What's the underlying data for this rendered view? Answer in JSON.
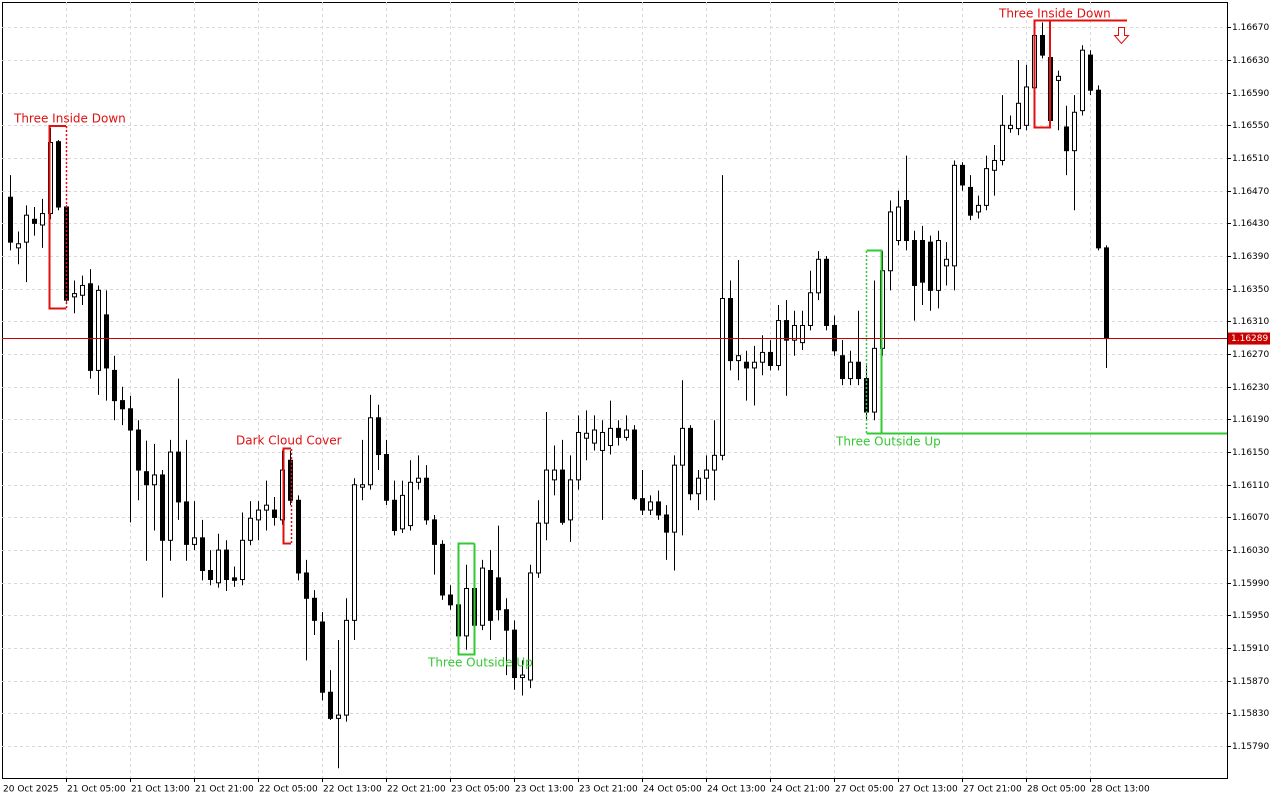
{
  "chart_data": {
    "type": "candlestick",
    "x": [
      "20 Oct 2025",
      null,
      null,
      null,
      null,
      null,
      null,
      "21 Oct 05:00",
      null,
      null,
      null,
      null,
      null,
      null,
      null,
      "21 Oct 13:00",
      null,
      null,
      null,
      null,
      null,
      null,
      null,
      "21 Oct 21:00",
      null,
      null,
      null,
      null,
      null,
      null,
      null,
      "22 Oct 05:00",
      null,
      null,
      null,
      null,
      null,
      null,
      null,
      "22 Oct 13:00",
      null,
      null,
      null,
      null,
      null,
      null,
      null,
      "22 Oct 21:00",
      null,
      null,
      null,
      null,
      null,
      null,
      null,
      "23 Oct 05:00",
      null,
      null,
      null,
      null,
      null,
      null,
      null,
      "23 Oct 13:00",
      null,
      null,
      null,
      null,
      null,
      null,
      null,
      "23 Oct 21:00",
      null,
      null,
      null,
      null,
      null,
      null,
      null,
      "24 Oct 05:00",
      null,
      null,
      null,
      null,
      null,
      null,
      null,
      "24 Oct 13:00",
      null,
      null,
      null,
      null,
      null,
      null,
      null,
      "24 Oct 21:00",
      null,
      null,
      null,
      null,
      null,
      null,
      null,
      "27 Oct 05:00",
      null,
      null,
      null,
      null,
      null,
      null,
      null,
      "27 Oct 13:00",
      null,
      null,
      null,
      null,
      null,
      null,
      null,
      "27 Oct 21:00",
      null,
      null,
      null,
      null,
      null,
      null,
      null,
      "28 Oct 05:00",
      null,
      null,
      null,
      null,
      null,
      null,
      null,
      "28 Oct 13:00",
      null,
      null
    ],
    "open": [
      1.16462,
      1.164,
      1.16407,
      1.16435,
      1.16428,
      1.16442,
      1.1653,
      1.1645,
      1.1634,
      1.16342,
      1.16356,
      1.1625,
      1.16318,
      1.1625,
      1.16213,
      1.16203,
      1.16177,
      1.16126,
      1.1611,
      1.16122,
      1.16042,
      1.1615,
      1.16089,
      1.16037,
      1.16045,
      1.16005,
      1.1599,
      1.1603,
      1.15996,
      1.15994,
      1.16042,
      1.16067,
      1.16079,
      1.16079,
      1.16067,
      1.1614,
      1.16091,
      1.16002,
      1.15971,
      1.15942,
      1.15856,
      1.15824,
      1.15828,
      1.15944,
      1.16107,
      1.1611,
      1.16192,
      1.16147,
      1.16091,
      1.16056,
      1.1606,
      1.16113,
      1.16118,
      1.16067,
      1.16037,
      1.15975,
      1.15963,
      1.15925,
      1.15983,
      1.15938,
      1.16005,
      1.15996,
      1.15957,
      1.15932,
      1.15874,
      1.15871,
      1.16002,
      1.16063,
      1.16116,
      1.16128,
      1.16067,
      1.16116,
      1.16167,
      1.16161,
      1.16152,
      1.16158,
      1.16179,
      1.16168,
      1.16177,
      1.16093,
      1.16079,
      1.16089,
      1.16073,
      1.16052,
      1.16134,
      1.16179,
      1.16099,
      1.16118,
      1.16128,
      1.16146,
      1.16338,
      1.16262,
      1.1626,
      1.16253,
      1.1626,
      1.16272,
      1.16256,
      1.16311,
      1.16287,
      1.16284,
      1.16305,
      1.16345,
      1.16386,
      1.16305,
      1.16268,
      1.1624,
      1.1626,
      1.1624,
      1.16199,
      1.16277,
      1.16372,
      1.16409,
      1.16458,
      1.16409,
      1.16409,
      1.16407,
      1.16348,
      1.16378,
      1.16378,
      1.16501,
      1.16474,
      1.16444,
      1.16452,
      1.16495,
      1.16507,
      1.16546,
      1.16546,
      1.1655,
      1.16596,
      1.1666,
      1.16633,
      1.16605,
      1.16548,
      1.16519,
      1.16568,
      1.16636,
      1.16593,
      1.164
    ],
    "high": [
      1.16489,
      1.1642,
      1.16452,
      1.1645,
      1.1646,
      1.16547,
      1.16532,
      1.16452,
      1.1636,
      1.16366,
      1.16374,
      1.16354,
      1.16348,
      1.16268,
      1.1623,
      1.16219,
      1.16189,
      1.16164,
      1.1616,
      1.16128,
      1.16165,
      1.1624,
      1.16165,
      1.1609,
      1.16067,
      1.1603,
      1.1605,
      1.16042,
      1.1601,
      1.16076,
      1.1609,
      1.1609,
      1.16115,
      1.16095,
      1.16152,
      1.16152,
      1.16097,
      1.16018,
      1.15981,
      1.15954,
      1.15883,
      1.1592,
      1.15971,
      1.16118,
      1.16165,
      1.1622,
      1.16208,
      1.16165,
      1.16115,
      1.16115,
      1.1614,
      1.16146,
      1.16134,
      1.16073,
      1.16042,
      1.15987,
      1.15969,
      1.16012,
      1.16005,
      1.16018,
      1.1603,
      1.1606,
      1.15971,
      1.15944,
      1.15895,
      1.16012,
      1.16091,
      1.16199,
      1.16158,
      1.16165,
      1.16146,
      1.16195,
      1.16201,
      1.16195,
      1.16189,
      1.16213,
      1.16189,
      1.16195,
      1.16183,
      1.16128,
      1.16097,
      1.16103,
      1.16085,
      1.16146,
      1.16238,
      1.16183,
      1.16128,
      1.16146,
      1.16189,
      1.16489,
      1.1636,
      1.16385,
      1.16274,
      1.1628,
      1.16293,
      1.16287,
      1.1633,
      1.16336,
      1.16323,
      1.16323,
      1.16372,
      1.16396,
      1.1639,
      1.16317,
      1.16287,
      1.16274,
      1.16323,
      1.16256,
      1.1636,
      1.16396,
      1.16458,
      1.1647,
      1.16513,
      1.16421,
      1.16427,
      1.16415,
      1.16421,
      1.16407,
      1.16507,
      1.16505,
      1.16489,
      1.16464,
      1.16513,
      1.16526,
      1.16587,
      1.16562,
      1.1663,
      1.16624,
      1.16672,
      1.16676,
      1.16654,
      1.16617,
      1.16574,
      1.16587,
      1.16648,
      1.16642,
      1.16599,
      1.16403
    ],
    "low": [
      1.16397,
      1.1638,
      1.16358,
      1.16415,
      1.164,
      1.16435,
      1.16446,
      1.16334,
      1.1632,
      1.1633,
      1.1624,
      1.1622,
      1.16213,
      1.16189,
      1.16183,
      1.16064,
      1.16091,
      1.16017,
      1.16054,
      1.15972,
      1.16017,
      1.16067,
      1.16017,
      1.1603,
      1.15993,
      1.15987,
      1.15984,
      1.1598,
      1.15985,
      1.15987,
      1.16036,
      1.16042,
      1.16054,
      1.1606,
      1.16061,
      1.16085,
      1.15993,
      1.15895,
      1.15926,
      1.15846,
      1.15822,
      1.15763,
      1.1582,
      1.1592,
      1.16091,
      1.16104,
      1.16128,
      1.16085,
      1.16048,
      1.16051,
      1.16054,
      1.16104,
      1.16061,
      1.16,
      1.15969,
      1.15957,
      1.15914,
      1.15908,
      1.1592,
      1.15932,
      1.1592,
      1.15944,
      1.15877,
      1.15859,
      1.15852,
      1.15861,
      1.15996,
      1.16042,
      1.16097,
      1.16061,
      1.1604,
      1.16104,
      1.1614,
      1.16152,
      1.16067,
      1.16147,
      1.16158,
      1.16164,
      1.16091,
      1.16073,
      1.16073,
      1.16067,
      1.16018,
      1.16005,
      1.16048,
      1.16091,
      1.16079,
      1.16091,
      1.16091,
      1.1614,
      1.1625,
      1.16238,
      1.16213,
      1.16207,
      1.16244,
      1.1625,
      1.1625,
      1.16219,
      1.16268,
      1.16275,
      1.16299,
      1.16336,
      1.16299,
      1.16268,
      1.16232,
      1.16232,
      1.16232,
      1.16189,
      1.16189,
      1.16268,
      1.16348,
      1.16403,
      1.16397,
      1.16311,
      1.1633,
      1.16323,
      1.16326,
      1.16354,
      1.16348,
      1.1647,
      1.16434,
      1.16436,
      1.16446,
      1.16464,
      1.16501,
      1.16541,
      1.16538,
      1.16544,
      1.16587,
      1.16632,
      1.1655,
      1.16544,
      1.16489,
      1.16446,
      1.16562,
      1.16587,
      1.16397,
      1.16253
    ],
    "close": [
      1.16407,
      1.16405,
      1.1644,
      1.1643,
      1.16442,
      1.16529,
      1.1645,
      1.16336,
      1.16344,
      1.16354,
      1.1625,
      1.16348,
      1.16253,
      1.16213,
      1.16203,
      1.16177,
      1.16128,
      1.1611,
      1.16122,
      1.16042,
      1.1615,
      1.16089,
      1.16037,
      1.16045,
      1.16005,
      1.15994,
      1.1603,
      1.15994,
      1.15993,
      1.16042,
      1.16069,
      1.16079,
      1.16085,
      1.1607,
      1.16128,
      1.16091,
      1.16002,
      1.15971,
      1.15944,
      1.15856,
      1.15824,
      1.15828,
      1.15944,
      1.1611,
      1.1611,
      1.16192,
      1.16147,
      1.16091,
      1.16054,
      1.16097,
      1.16113,
      1.16118,
      1.16067,
      1.16037,
      1.15975,
      1.15963,
      1.15925,
      1.15983,
      1.15938,
      1.16008,
      1.15944,
      1.15957,
      1.15932,
      1.15874,
      1.15877,
      1.16002,
      1.16063,
      1.16128,
      1.16128,
      1.16064,
      1.16116,
      1.16174,
      1.16173,
      1.16177,
      1.16174,
      1.16179,
      1.16168,
      1.16177,
      1.16093,
      1.16079,
      1.16089,
      1.16073,
      1.16052,
      1.16134,
      1.16179,
      1.16099,
      1.16118,
      1.16128,
      1.16146,
      1.16338,
      1.16262,
      1.16268,
      1.16253,
      1.1626,
      1.16272,
      1.16256,
      1.16311,
      1.16287,
      1.16305,
      1.16305,
      1.16345,
      1.16386,
      1.16305,
      1.16274,
      1.1624,
      1.1626,
      1.1624,
      1.16199,
      1.16277,
      1.16372,
      1.16444,
      1.1645,
      1.16409,
      1.16354,
      1.16358,
      1.16348,
      1.16409,
      1.16386,
      1.16501,
      1.16477,
      1.1644,
      1.16452,
      1.16497,
      1.16507,
      1.1655,
      1.1655,
      1.16577,
      1.16597,
      1.1666,
      1.16636,
      1.16556,
      1.1661,
      1.16519,
      1.16566,
      1.16642,
      1.16593,
      1.164,
      1.16289
    ],
    "up_color": "#ffffff",
    "down_color": "#000000",
    "outline_color": "#000000",
    "ylim": [
      1.15751,
      1.16701
    ],
    "yticks": [
      {
        "value": 1.1667,
        "label": "1.16670"
      },
      {
        "value": 1.1663,
        "label": "1.16630"
      },
      {
        "value": 1.1659,
        "label": "1.16590"
      },
      {
        "value": 1.1655,
        "label": "1.16550"
      },
      {
        "value": 1.1651,
        "label": "1.16510"
      },
      {
        "value": 1.1647,
        "label": "1.16470"
      },
      {
        "value": 1.1643,
        "label": "1.16430"
      },
      {
        "value": 1.1639,
        "label": "1.16390"
      },
      {
        "value": 1.1635,
        "label": "1.16350"
      },
      {
        "value": 1.1631,
        "label": "1.16310"
      },
      {
        "value": 1.1627,
        "label": "1.16270"
      },
      {
        "value": 1.1623,
        "label": "1.16230"
      },
      {
        "value": 1.1619,
        "label": "1.16190"
      },
      {
        "value": 1.1615,
        "label": "1.16150"
      },
      {
        "value": 1.1611,
        "label": "1.16110"
      },
      {
        "value": 1.1607,
        "label": "1.16070"
      },
      {
        "value": 1.1603,
        "label": "1.16030"
      },
      {
        "value": 1.1599,
        "label": "1.15990"
      },
      {
        "value": 1.1595,
        "label": "1.15950"
      },
      {
        "value": 1.1591,
        "label": "1.15910"
      },
      {
        "value": 1.1587,
        "label": "1.15870"
      },
      {
        "value": 1.1583,
        "label": "1.15830"
      },
      {
        "value": 1.1579,
        "label": "1.15790"
      }
    ],
    "grid": true,
    "last_price": 1.16289,
    "last_price_color": "#c80000",
    "annotations": [
      {
        "text": "Three Inside Down",
        "color": "#e01010"
      },
      {
        "text": "Dark Cloud Cover",
        "color": "#e01010"
      },
      {
        "text": "Three Outside Up",
        "color": "#32c832"
      },
      {
        "text": "Three Outside Up",
        "color": "#32c832"
      },
      {
        "text": "Three Inside Down",
        "color": "#e01010"
      }
    ]
  }
}
